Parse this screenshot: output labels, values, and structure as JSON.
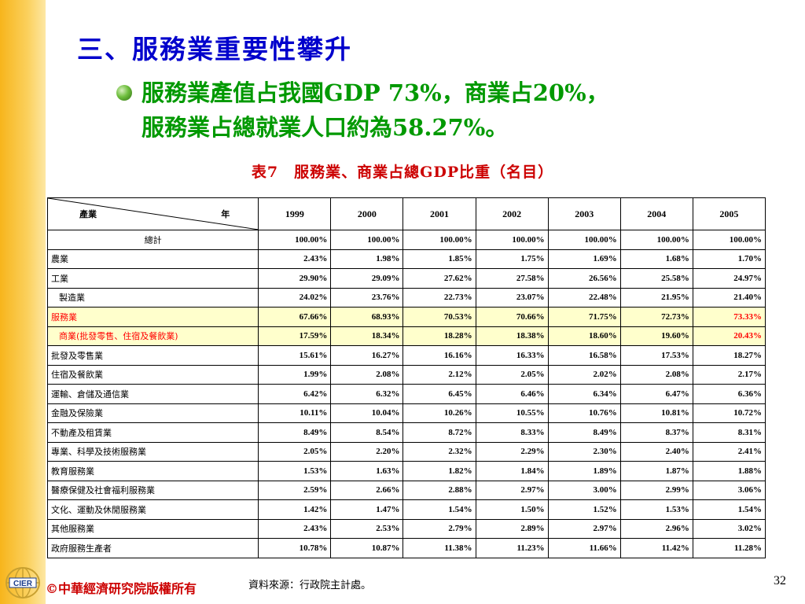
{
  "title": "三、服務業重要性攀升",
  "bullet": {
    "line1": "服務業產值占我國GDP 73%，商業占20%，",
    "line2": "服務業占總就業人口約為58.27%。"
  },
  "table": {
    "caption": "表7　服務業、商業占總GDP比重（名目）",
    "corner_left": "產業",
    "corner_right": "年",
    "years": [
      "1999",
      "2000",
      "2001",
      "2002",
      "2003",
      "2004",
      "2005"
    ],
    "rows": [
      {
        "label": "總計",
        "values": [
          "100.00%",
          "100.00%",
          "100.00%",
          "100.00%",
          "100.00%",
          "100.00%",
          "100.00%"
        ]
      },
      {
        "label": "農業",
        "values": [
          "2.43%",
          "1.98%",
          "1.85%",
          "1.75%",
          "1.69%",
          "1.68%",
          "1.70%"
        ]
      },
      {
        "label": "工業",
        "values": [
          "29.90%",
          "29.09%",
          "27.62%",
          "27.58%",
          "26.56%",
          "25.58%",
          "24.97%"
        ]
      },
      {
        "label": "製造業",
        "values": [
          "24.02%",
          "23.76%",
          "22.73%",
          "23.07%",
          "22.48%",
          "21.95%",
          "21.40%"
        ]
      },
      {
        "label": "服務業",
        "values": [
          "67.66%",
          "68.93%",
          "70.53%",
          "70.66%",
          "71.75%",
          "72.73%",
          "73.33%"
        ]
      },
      {
        "label": "商業(批發零售、住宿及餐飲業)",
        "values": [
          "17.59%",
          "18.34%",
          "18.28%",
          "18.38%",
          "18.60%",
          "19.60%",
          "20.43%"
        ]
      },
      {
        "label": "批發及零售業",
        "values": [
          "15.61%",
          "16.27%",
          "16.16%",
          "16.33%",
          "16.58%",
          "17.53%",
          "18.27%"
        ]
      },
      {
        "label": "住宿及餐飲業",
        "values": [
          "1.99%",
          "2.08%",
          "2.12%",
          "2.05%",
          "2.02%",
          "2.08%",
          "2.17%"
        ]
      },
      {
        "label": "運輸、倉儲及通信業",
        "values": [
          "6.42%",
          "6.32%",
          "6.45%",
          "6.46%",
          "6.34%",
          "6.47%",
          "6.36%"
        ]
      },
      {
        "label": "金融及保險業",
        "values": [
          "10.11%",
          "10.04%",
          "10.26%",
          "10.55%",
          "10.76%",
          "10.81%",
          "10.72%"
        ]
      },
      {
        "label": "不動產及租賃業",
        "values": [
          "8.49%",
          "8.54%",
          "8.72%",
          "8.33%",
          "8.49%",
          "8.37%",
          "8.31%"
        ]
      },
      {
        "label": "專業、科學及技術服務業",
        "values": [
          "2.05%",
          "2.20%",
          "2.32%",
          "2.29%",
          "2.30%",
          "2.40%",
          "2.41%"
        ]
      },
      {
        "label": "教育服務業",
        "values": [
          "1.53%",
          "1.63%",
          "1.82%",
          "1.84%",
          "1.89%",
          "1.87%",
          "1.88%"
        ]
      },
      {
        "label": "醫療保健及社會福利服務業",
        "values": [
          "2.59%",
          "2.66%",
          "2.88%",
          "2.97%",
          "3.00%",
          "2.99%",
          "3.06%"
        ]
      },
      {
        "label": "文化、運動及休閒服務業",
        "values": [
          "1.42%",
          "1.47%",
          "1.54%",
          "1.50%",
          "1.52%",
          "1.53%",
          "1.54%"
        ]
      },
      {
        "label": "其他服務業",
        "values": [
          "2.43%",
          "2.53%",
          "2.79%",
          "2.89%",
          "2.97%",
          "2.96%",
          "3.02%"
        ]
      },
      {
        "label": "政府服務生產者",
        "values": [
          "10.78%",
          "10.87%",
          "11.38%",
          "11.23%",
          "11.66%",
          "11.42%",
          "11.28%"
        ]
      }
    ]
  },
  "footer": {
    "logo_text": "CIER",
    "copyright": "©中華經濟研究院版權所有",
    "source": "資料來源：行政院主計處。",
    "page_number": "32"
  },
  "colors": {
    "title": "#0000cc",
    "bullet": "#009900",
    "caption": "#cc0000",
    "highlight_row": "#ffffcc",
    "highlight_text": "#ff0000",
    "left_bar": "#f7b51c"
  },
  "icons": {
    "bullet": "green-sphere-bullet-icon",
    "logo": "cier-globe-logo-icon"
  }
}
